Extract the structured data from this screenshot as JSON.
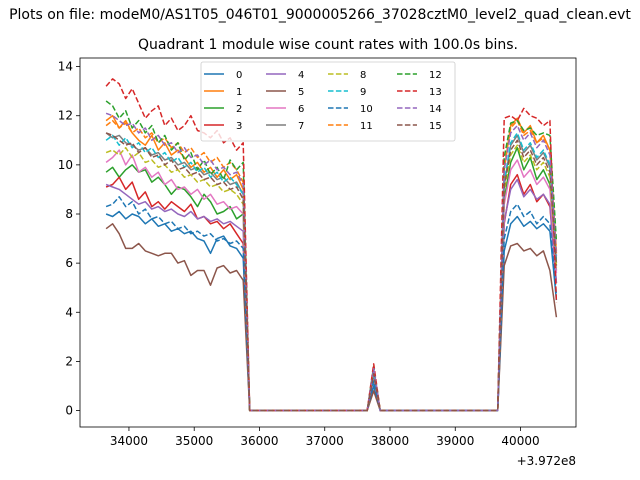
{
  "figure": {
    "suptitle": "Plots on file: modeM0/AS1T05_046T01_9000005266_37028cztM0_level2_quad_clean.evt",
    "title": "Quadrant 1 module wise count rates with 100.0s bins.",
    "x_offset_label": "+3.972e8"
  },
  "chart_data": {
    "type": "line",
    "title": "Quadrant 1 module wise count rates with 100.0s bins.",
    "xlabel": "",
    "ylabel": "",
    "x_offset": "+3.972e8",
    "xlim": [
      33250,
      40850
    ],
    "ylim": [
      -0.67,
      14.35
    ],
    "xticks": [
      34000,
      35000,
      36000,
      37000,
      38000,
      39000,
      40000
    ],
    "yticks": [
      0,
      2,
      4,
      6,
      8,
      10,
      12,
      14
    ],
    "grid": false,
    "legend": {
      "location": "top-center",
      "columns": 4
    },
    "series": [
      {
        "name": "0",
        "color": "#1f77b4",
        "dash": "solid",
        "seg1": [
          8.0,
          7.9,
          8.1,
          7.8,
          8.0,
          7.9,
          7.6,
          7.8,
          7.5,
          7.6,
          7.3,
          7.4,
          7.2,
          7.3,
          7.0,
          6.9,
          6.4,
          7.0,
          7.1,
          6.7,
          6.6,
          6.2
        ],
        "spike": 1.0,
        "seg2": [
          6.5,
          7.6,
          7.9,
          7.5,
          7.7,
          7.4,
          7.6,
          7.3,
          4.5
        ]
      },
      {
        "name": "1",
        "color": "#ff7f0e",
        "dash": "solid",
        "seg1": [
          11.8,
          12.0,
          11.5,
          11.8,
          11.3,
          11.0,
          10.8,
          11.2,
          10.6,
          10.9,
          10.4,
          10.6,
          10.3,
          9.9,
          10.1,
          9.7,
          9.9,
          9.5,
          9.8,
          9.4,
          9.6,
          9.0
        ],
        "spike": 1.6,
        "seg2": [
          9.8,
          11.6,
          11.9,
          11.3,
          11.6,
          10.9,
          11.2,
          10.6,
          6.4
        ]
      },
      {
        "name": "2",
        "color": "#2ca02c",
        "dash": "solid",
        "seg1": [
          9.7,
          9.9,
          9.5,
          9.8,
          10.0,
          9.7,
          9.8,
          9.3,
          9.5,
          9.2,
          8.8,
          9.1,
          9.0,
          8.7,
          8.3,
          8.8,
          8.5,
          8.0,
          8.1,
          8.3,
          7.8,
          8.0
        ],
        "spike": 1.4,
        "seg2": [
          8.6,
          10.1,
          10.7,
          9.8,
          10.3,
          9.4,
          9.8,
          9.2,
          5.7
        ]
      },
      {
        "name": "3",
        "color": "#d62728",
        "dash": "solid",
        "seg1": [
          9.1,
          9.2,
          9.5,
          9.0,
          9.3,
          8.6,
          8.9,
          8.3,
          8.5,
          8.2,
          8.5,
          8.3,
          8.1,
          8.4,
          7.8,
          7.9,
          7.6,
          7.7,
          7.4,
          7.6,
          7.2,
          6.8
        ],
        "spike": 1.5,
        "seg2": [
          7.6,
          9.2,
          9.6,
          8.8,
          9.2,
          8.5,
          8.8,
          8.3,
          5.2
        ]
      },
      {
        "name": "4",
        "color": "#9467bd",
        "dash": "solid",
        "seg1": [
          9.2,
          9.1,
          9.0,
          8.8,
          8.6,
          8.4,
          8.5,
          8.2,
          8.3,
          8.1,
          8.2,
          8.0,
          7.9,
          8.1,
          7.8,
          7.9,
          7.7,
          7.8,
          7.6,
          7.7,
          7.5,
          7.3
        ],
        "spike": 1.3,
        "seg2": [
          7.7,
          9.0,
          9.4,
          8.7,
          9.0,
          8.6,
          8.8,
          8.4,
          5.2
        ]
      },
      {
        "name": "5",
        "color": "#8c564b",
        "dash": "solid",
        "seg1": [
          7.4,
          7.6,
          7.2,
          6.6,
          6.6,
          6.8,
          6.5,
          6.4,
          6.3,
          6.4,
          6.4,
          6.0,
          6.1,
          5.5,
          5.7,
          5.7,
          5.1,
          5.8,
          5.9,
          5.6,
          5.7,
          5.3
        ],
        "spike": 0.8,
        "seg2": [
          5.9,
          6.7,
          6.8,
          6.5,
          6.6,
          6.3,
          6.5,
          5.7,
          3.8
        ]
      },
      {
        "name": "6",
        "color": "#e377c2",
        "dash": "solid",
        "seg1": [
          10.1,
          10.3,
          10.6,
          10.0,
          10.4,
          9.7,
          9.9,
          9.5,
          9.7,
          9.2,
          9.4,
          9.0,
          9.1,
          8.8,
          9.0,
          8.6,
          8.8,
          8.4,
          8.5,
          8.2,
          8.3,
          8.0
        ],
        "spike": 1.4,
        "seg2": [
          8.4,
          9.8,
          10.2,
          9.5,
          9.8,
          9.2,
          9.5,
          9.0,
          5.6
        ]
      },
      {
        "name": "7",
        "color": "#7f7f7f",
        "dash": "solid",
        "seg1": [
          11.3,
          11.1,
          11.2,
          10.9,
          10.8,
          10.6,
          10.7,
          10.4,
          10.5,
          10.2,
          10.3,
          10.0,
          10.1,
          9.8,
          9.9,
          9.6,
          9.7,
          9.4,
          9.5,
          9.2,
          9.3,
          8.8
        ],
        "spike": 1.5,
        "seg2": [
          9.2,
          10.8,
          11.2,
          10.5,
          10.8,
          10.2,
          10.5,
          9.9,
          6.0
        ]
      },
      {
        "name": "8",
        "color": "#bcbd22",
        "dash": "dashed",
        "seg1": [
          10.5,
          10.6,
          10.4,
          10.7,
          10.3,
          10.5,
          10.1,
          10.2,
          9.9,
          10.0,
          9.7,
          9.8,
          9.5,
          9.6,
          9.3,
          9.4,
          9.1,
          9.2,
          8.9,
          9.0,
          8.8,
          8.4
        ],
        "spike": 1.5,
        "seg2": [
          8.9,
          10.4,
          10.8,
          10.1,
          10.4,
          9.8,
          10.1,
          9.5,
          5.8
        ]
      },
      {
        "name": "9",
        "color": "#17becf",
        "dash": "dashed",
        "seg1": [
          11.0,
          11.2,
          10.8,
          11.1,
          10.7,
          10.9,
          10.5,
          10.7,
          10.3,
          10.5,
          10.1,
          10.3,
          9.9,
          10.1,
          9.7,
          9.9,
          9.5,
          9.7,
          9.3,
          9.5,
          9.2,
          8.8
        ],
        "spike": 1.5,
        "seg2": [
          9.3,
          10.9,
          11.3,
          10.6,
          10.9,
          10.3,
          10.6,
          10.0,
          6.1
        ]
      },
      {
        "name": "10",
        "color": "#1f77b4",
        "dash": "dashed",
        "seg1": [
          8.3,
          8.4,
          8.7,
          8.3,
          8.5,
          8.0,
          8.2,
          7.8,
          7.9,
          7.6,
          7.7,
          7.4,
          7.5,
          7.2,
          7.3,
          7.1,
          7.2,
          6.9,
          7.0,
          6.8,
          6.9,
          6.6
        ],
        "spike": 1.2,
        "seg2": [
          7.0,
          8.1,
          8.4,
          7.9,
          8.1,
          7.6,
          7.9,
          7.6,
          4.7
        ]
      },
      {
        "name": "11",
        "color": "#ff7f0e",
        "dash": "dashed",
        "seg1": [
          11.6,
          11.8,
          11.5,
          11.7,
          11.3,
          11.5,
          11.1,
          11.3,
          10.9,
          11.1,
          10.7,
          10.9,
          10.5,
          10.7,
          10.3,
          10.5,
          10.1,
          10.3,
          9.9,
          10.1,
          9.8,
          9.3
        ],
        "spike": 1.7,
        "seg2": [
          9.9,
          11.5,
          11.8,
          11.2,
          11.4,
          10.9,
          11.1,
          10.6,
          6.5
        ]
      },
      {
        "name": "12",
        "color": "#2ca02c",
        "dash": "dashed",
        "seg1": [
          12.6,
          12.4,
          11.9,
          12.2,
          11.5,
          11.8,
          11.3,
          11.6,
          10.9,
          11.2,
          10.6,
          10.9,
          10.2,
          10.5,
          9.8,
          10.2,
          9.6,
          9.9,
          9.4,
          10.2,
          9.8,
          10.1
        ],
        "spike": 1.8,
        "seg2": [
          10.3,
          11.7,
          11.8,
          11.4,
          11.5,
          11.2,
          11.3,
          11.2,
          6.9
        ]
      },
      {
        "name": "13",
        "color": "#d62728",
        "dash": "dashed",
        "seg1": [
          13.2,
          13.5,
          13.3,
          12.7,
          13.1,
          12.5,
          11.9,
          12.2,
          12.4,
          11.6,
          11.9,
          11.4,
          11.6,
          12.0,
          11.4,
          11.3,
          11.1,
          11.4,
          10.9,
          11.1,
          10.6,
          10.9
        ],
        "spike": 1.9,
        "seg2": [
          11.9,
          12.0,
          11.8,
          12.3,
          12.0,
          11.9,
          11.6,
          11.8,
          4.4
        ]
      },
      {
        "name": "14",
        "color": "#9467bd",
        "dash": "dashed",
        "seg1": [
          12.1,
          12.0,
          11.8,
          11.6,
          11.7,
          11.3,
          11.5,
          11.0,
          11.2,
          10.8,
          10.9,
          10.5,
          10.7,
          10.3,
          10.4,
          10.0,
          10.2,
          9.8,
          9.9,
          9.6,
          9.7,
          9.2
        ],
        "spike": 1.7,
        "seg2": [
          9.8,
          11.3,
          11.6,
          11.0,
          11.3,
          10.7,
          11.0,
          10.4,
          6.3
        ]
      },
      {
        "name": "15",
        "color": "#8c564b",
        "dash": "dashed",
        "seg1": [
          11.3,
          11.2,
          11.0,
          10.8,
          10.9,
          10.5,
          10.7,
          10.3,
          10.4,
          10.0,
          10.2,
          9.8,
          9.9,
          9.6,
          9.7,
          9.4,
          9.5,
          9.2,
          9.3,
          9.0,
          9.1,
          8.6
        ],
        "spike": 1.5,
        "seg2": [
          9.1,
          10.6,
          11.0,
          10.3,
          10.6,
          10.0,
          10.3,
          9.7,
          5.9
        ]
      }
    ],
    "x_segments": {
      "seg1_x": [
        33650,
        33750,
        33850,
        33950,
        34050,
        34150,
        34250,
        34350,
        34450,
        34550,
        34650,
        34750,
        34850,
        34950,
        35050,
        35150,
        35250,
        35350,
        35450,
        35550,
        35650,
        35750
      ],
      "gap1_x": [
        35850,
        35950,
        36050,
        36150,
        36250,
        36350,
        36450,
        36550,
        36650,
        36750,
        36850,
        36950,
        37050,
        37150,
        37250,
        37350,
        37450,
        37550
      ],
      "spike_x": [
        37650,
        37750,
        37850
      ],
      "gap2_x": [
        37950,
        38050,
        38150,
        38250,
        38350,
        38450,
        38550,
        38650,
        38750,
        38850,
        38950,
        39050,
        39150,
        39250,
        39350,
        39450,
        39550,
        39650
      ],
      "seg2_x": [
        39750,
        39850,
        39950,
        40050,
        40150,
        40250,
        40350,
        40450,
        40550
      ]
    }
  }
}
